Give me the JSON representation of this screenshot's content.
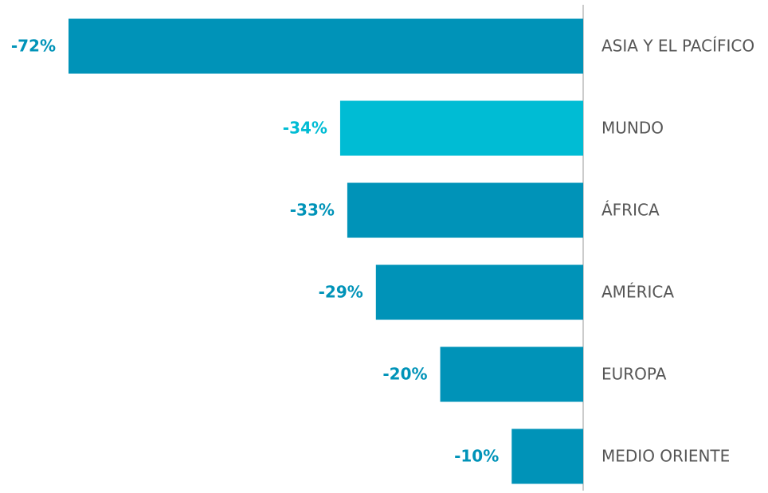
{
  "chart_data": {
    "type": "barh",
    "categories": [
      "ASIA Y EL PACÍFICO",
      "MUNDO",
      "ÁFRICA",
      "AMÉRICA",
      "EUROPA",
      "MEDIO ORIENTE"
    ],
    "values": [
      -72,
      -34,
      -33,
      -29,
      -20,
      -10
    ],
    "value_labels": [
      "-72%",
      "-34%",
      "-33%",
      "-29%",
      "-20%",
      "-10%"
    ],
    "colors": [
      "#0093b8",
      "#00bcd4",
      "#0093b8",
      "#0093b8",
      "#0093b8",
      "#0093b8"
    ],
    "xlim": [
      -72,
      0
    ]
  }
}
